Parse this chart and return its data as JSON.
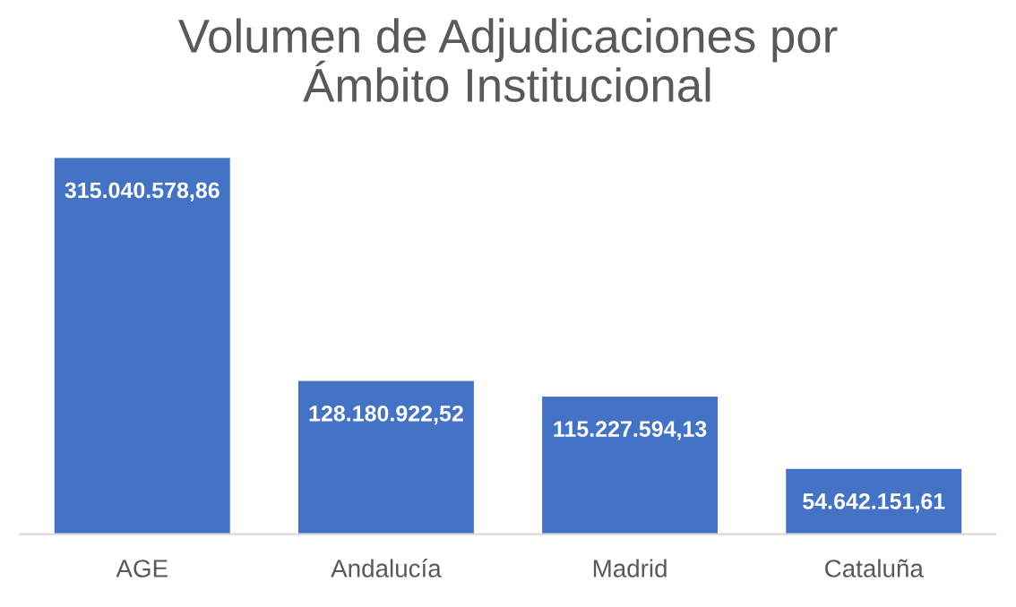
{
  "chart_data": {
    "type": "bar",
    "title": "Volumen de Adjudicaciones por\nÁmbito Institucional",
    "categories": [
      "AGE",
      "Andalucía",
      "Madrid",
      "Cataluña"
    ],
    "values": [
      315040578.86,
      128180922.52,
      115227594.13,
      54642151.61
    ],
    "value_labels": [
      "315.040.578,86",
      "128.180.922,52",
      "115.227.594,13",
      "54.642.151,61"
    ],
    "color": "#4472c4",
    "grid": false
  }
}
